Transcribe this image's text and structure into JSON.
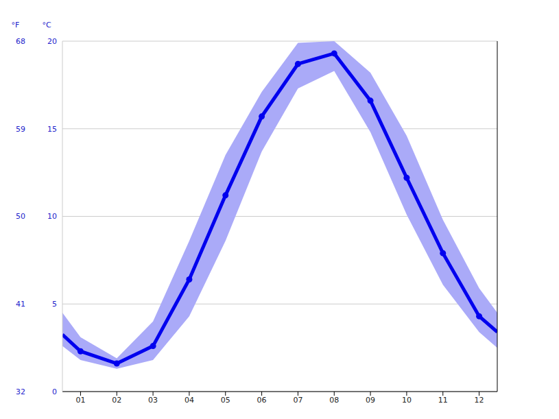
{
  "chart_data": {
    "type": "line",
    "x": [
      0.5,
      1,
      2,
      3,
      4,
      5,
      6,
      7,
      8,
      9,
      10,
      11,
      12,
      12.5
    ],
    "xlim": [
      0.5,
      12.5
    ],
    "xticks": [
      {
        "value": 1,
        "label": "01"
      },
      {
        "value": 2,
        "label": "02"
      },
      {
        "value": 3,
        "label": "03"
      },
      {
        "value": 4,
        "label": "04"
      },
      {
        "value": 5,
        "label": "05"
      },
      {
        "value": 6,
        "label": "06"
      },
      {
        "value": 7,
        "label": "07"
      },
      {
        "value": 8,
        "label": "08"
      },
      {
        "value": 9,
        "label": "09"
      },
      {
        "value": 10,
        "label": "10"
      },
      {
        "value": 11,
        "label": "11"
      },
      {
        "value": 12,
        "label": "12"
      }
    ],
    "ylim": [
      0,
      20
    ],
    "yticks": [
      0,
      5,
      10,
      15,
      20
    ],
    "y_label": "°C",
    "y2lim": [
      32,
      68
    ],
    "y2ticks": [
      32,
      41,
      50,
      59,
      68
    ],
    "y2_label": "°F",
    "grid": true,
    "series": [
      {
        "color": "#0000ee",
        "marker": "circle",
        "values": [
          3.25,
          2.3,
          1.6,
          2.6,
          6.4,
          11.2,
          15.7,
          18.7,
          19.3,
          16.6,
          12.2,
          7.9,
          4.3,
          3.4
        ],
        "range_low": [
          2.6,
          1.8,
          1.3,
          1.8,
          4.3,
          8.6,
          13.7,
          17.3,
          18.3,
          14.8,
          10.1,
          6.1,
          3.4,
          2.5
        ],
        "range_high": [
          4.5,
          3.1,
          1.9,
          4.0,
          8.6,
          13.5,
          17.1,
          19.9,
          20.0,
          18.2,
          14.6,
          9.8,
          5.9,
          4.5
        ],
        "range_color": "#aaaaf8"
      }
    ]
  }
}
